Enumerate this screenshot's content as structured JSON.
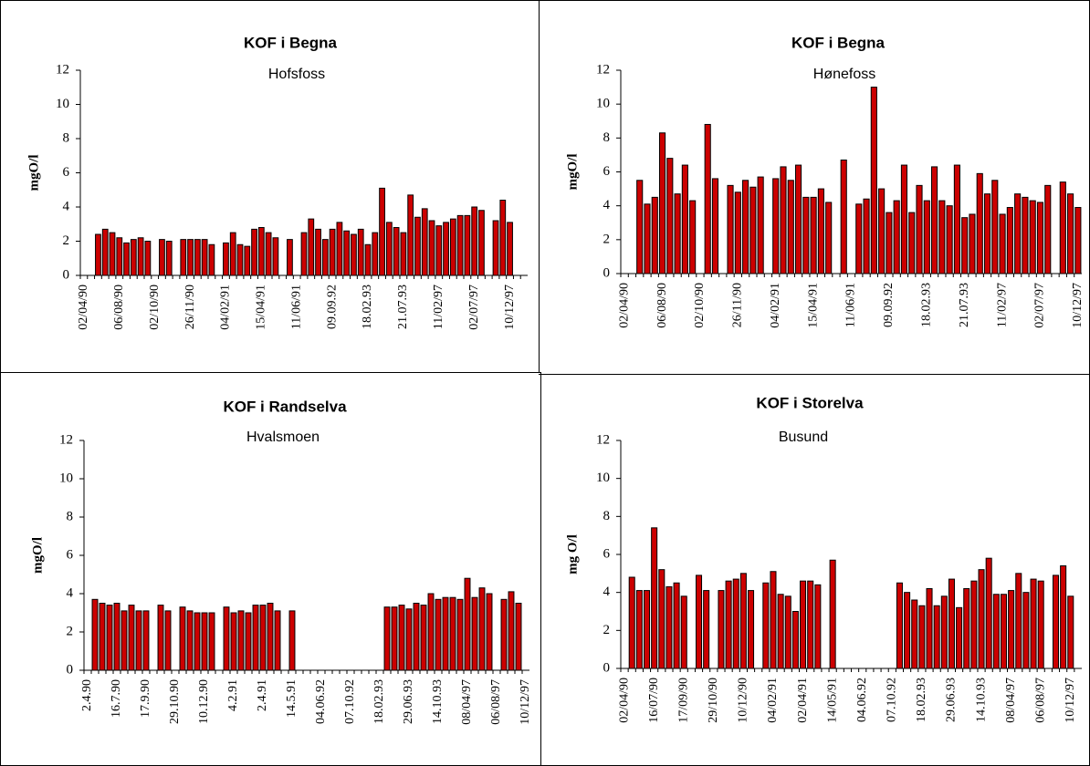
{
  "chart_data": [
    {
      "type": "bar",
      "title": "KOF i Begna",
      "subtitle": "Hofsfoss",
      "y_label": "mgO/l",
      "color": "#cc0000",
      "ylim": [
        0,
        12
      ],
      "yticks": [
        0,
        2,
        4,
        6,
        8,
        10,
        12
      ],
      "categories": [
        "02/04/90",
        null,
        null,
        null,
        null,
        "06/08/90",
        null,
        null,
        null,
        null,
        "02/10/90",
        null,
        null,
        null,
        null,
        "26/11/90",
        null,
        null,
        null,
        null,
        "04/02/91",
        null,
        null,
        null,
        null,
        "15/04/91",
        null,
        null,
        null,
        null,
        "11/06/91",
        null,
        null,
        null,
        null,
        "09.09.92",
        null,
        null,
        null,
        null,
        "18.02.93",
        null,
        null,
        null,
        null,
        "21.07.93",
        null,
        null,
        null,
        null,
        "11/02/97",
        null,
        null,
        null,
        null,
        "02/07/97",
        null,
        null,
        null,
        null,
        "10/12/97",
        null,
        null
      ],
      "values": [
        null,
        null,
        2.4,
        2.7,
        2.5,
        2.2,
        1.9,
        2.1,
        2.2,
        2.0,
        null,
        2.1,
        2.0,
        null,
        2.1,
        2.1,
        2.1,
        2.1,
        1.8,
        null,
        1.9,
        2.5,
        1.8,
        1.7,
        2.7,
        2.8,
        2.5,
        2.2,
        null,
        2.1,
        null,
        2.5,
        3.3,
        2.7,
        2.1,
        2.7,
        3.1,
        2.6,
        2.4,
        2.7,
        1.8,
        2.5,
        5.1,
        3.1,
        2.8,
        2.5,
        4.7,
        3.4,
        3.9,
        3.2,
        2.9,
        3.1,
        3.3,
        3.5,
        3.5,
        4.0,
        3.8,
        null,
        3.2,
        4.4,
        3.1,
        null,
        null
      ]
    },
    {
      "type": "bar",
      "title": "KOF i Begna",
      "subtitle": "Hønefoss",
      "y_label": "mgO/l",
      "color": "#cc0000",
      "ylim": [
        0,
        12
      ],
      "yticks": [
        0,
        2,
        4,
        6,
        8,
        10,
        12
      ],
      "categories": [
        "02/04/90",
        null,
        null,
        null,
        null,
        "06/08/90",
        null,
        null,
        null,
        null,
        "02/10/90",
        null,
        null,
        null,
        null,
        "26/11/90",
        null,
        null,
        null,
        null,
        "04/02/91",
        null,
        null,
        null,
        null,
        "15/04/91",
        null,
        null,
        null,
        null,
        "11/06/91",
        null,
        null,
        null,
        null,
        "09.09.92",
        null,
        null,
        null,
        null,
        "18.02.93",
        null,
        null,
        null,
        null,
        "21.07.93",
        null,
        null,
        null,
        null,
        "11/02/97",
        null,
        null,
        null,
        null,
        "02/07/97",
        null,
        null,
        null,
        null,
        "10/12/97"
      ],
      "values": [
        null,
        null,
        5.5,
        4.1,
        4.5,
        8.3,
        6.8,
        4.7,
        6.4,
        4.3,
        null,
        8.8,
        5.6,
        null,
        5.2,
        4.8,
        5.5,
        5.1,
        5.7,
        null,
        5.6,
        6.3,
        5.5,
        6.4,
        4.5,
        4.5,
        5.0,
        4.2,
        null,
        6.7,
        null,
        4.1,
        4.4,
        11.0,
        5.0,
        3.6,
        4.3,
        6.4,
        3.6,
        5.2,
        4.3,
        6.3,
        4.3,
        4.0,
        6.4,
        3.3,
        3.5,
        5.9,
        4.7,
        5.5,
        3.5,
        3.9,
        4.7,
        4.5,
        4.3,
        4.2,
        5.2,
        null,
        5.4,
        4.7,
        3.9
      ]
    },
    {
      "type": "bar",
      "title": "KOF i Randselva",
      "subtitle": "Hvalsmoen",
      "y_label": "mgO/l",
      "color": "#cc0000",
      "ylim": [
        0,
        12
      ],
      "yticks": [
        0,
        2,
        4,
        6,
        8,
        10,
        12
      ],
      "categories": [
        "2.4.90",
        null,
        null,
        null,
        "16.7.90",
        null,
        null,
        null,
        "17.9.90",
        null,
        null,
        null,
        "29.10.90",
        null,
        null,
        null,
        "10.12.90",
        null,
        null,
        null,
        "4.2.91",
        null,
        null,
        null,
        "2.4.91",
        null,
        null,
        null,
        "14.5.91",
        null,
        null,
        null,
        "04.06.92",
        null,
        null,
        null,
        "07.10.92",
        null,
        null,
        null,
        "18.02.93",
        null,
        null,
        null,
        "29.06.93",
        null,
        null,
        null,
        "14.10.93",
        null,
        null,
        null,
        "08/04/97",
        null,
        null,
        null,
        "06/08/97",
        null,
        null,
        null,
        "10/12/97"
      ],
      "values": [
        null,
        3.7,
        3.5,
        3.4,
        3.5,
        3.1,
        3.4,
        3.1,
        3.1,
        null,
        3.4,
        3.1,
        null,
        3.3,
        3.1,
        3.0,
        3.0,
        3.0,
        null,
        3.3,
        3.0,
        3.1,
        3.0,
        3.4,
        3.4,
        3.5,
        3.1,
        null,
        3.1,
        null,
        null,
        null,
        null,
        null,
        null,
        null,
        null,
        null,
        null,
        null,
        null,
        3.3,
        3.3,
        3.4,
        3.2,
        3.5,
        3.4,
        4.0,
        3.7,
        3.8,
        3.8,
        3.7,
        4.8,
        3.8,
        4.3,
        4.0,
        null,
        3.7,
        4.1,
        3.5,
        null
      ]
    },
    {
      "type": "bar",
      "title": "KOF i Storelva",
      "subtitle": "Busund",
      "y_label": "mg O/l",
      "color": "#cc0000",
      "ylim": [
        0,
        12
      ],
      "yticks": [
        0,
        2,
        4,
        6,
        8,
        10,
        12
      ],
      "categories": [
        "02/04/90",
        null,
        null,
        null,
        "16/07/90",
        null,
        null,
        null,
        "17/09/90",
        null,
        null,
        null,
        "29/10/90",
        null,
        null,
        null,
        "10/12/90",
        null,
        null,
        null,
        "04/02/91",
        null,
        null,
        null,
        "02/04/91",
        null,
        null,
        null,
        "14/05/91",
        null,
        null,
        null,
        "04.06.92",
        null,
        null,
        null,
        "07.10.92",
        null,
        null,
        null,
        "18.02.93",
        null,
        null,
        null,
        "29.06.93",
        null,
        null,
        null,
        "14.10.93",
        null,
        null,
        null,
        "08/04/97",
        null,
        null,
        null,
        "06/08/97",
        null,
        null,
        null,
        "10/12/97",
        null
      ],
      "values": [
        null,
        4.8,
        4.1,
        4.1,
        7.4,
        5.2,
        4.3,
        4.5,
        3.8,
        null,
        4.9,
        4.1,
        null,
        4.1,
        4.6,
        4.7,
        5.0,
        4.1,
        null,
        4.5,
        5.1,
        3.9,
        3.8,
        3.0,
        4.6,
        4.6,
        4.4,
        null,
        5.7,
        null,
        null,
        null,
        null,
        null,
        null,
        null,
        null,
        4.5,
        4.0,
        3.6,
        3.3,
        4.2,
        3.3,
        3.8,
        4.7,
        3.2,
        4.2,
        4.6,
        5.2,
        5.8,
        3.9,
        3.9,
        4.1,
        5.0,
        4.0,
        4.7,
        4.6,
        null,
        4.9,
        5.4,
        3.8,
        null
      ]
    }
  ]
}
